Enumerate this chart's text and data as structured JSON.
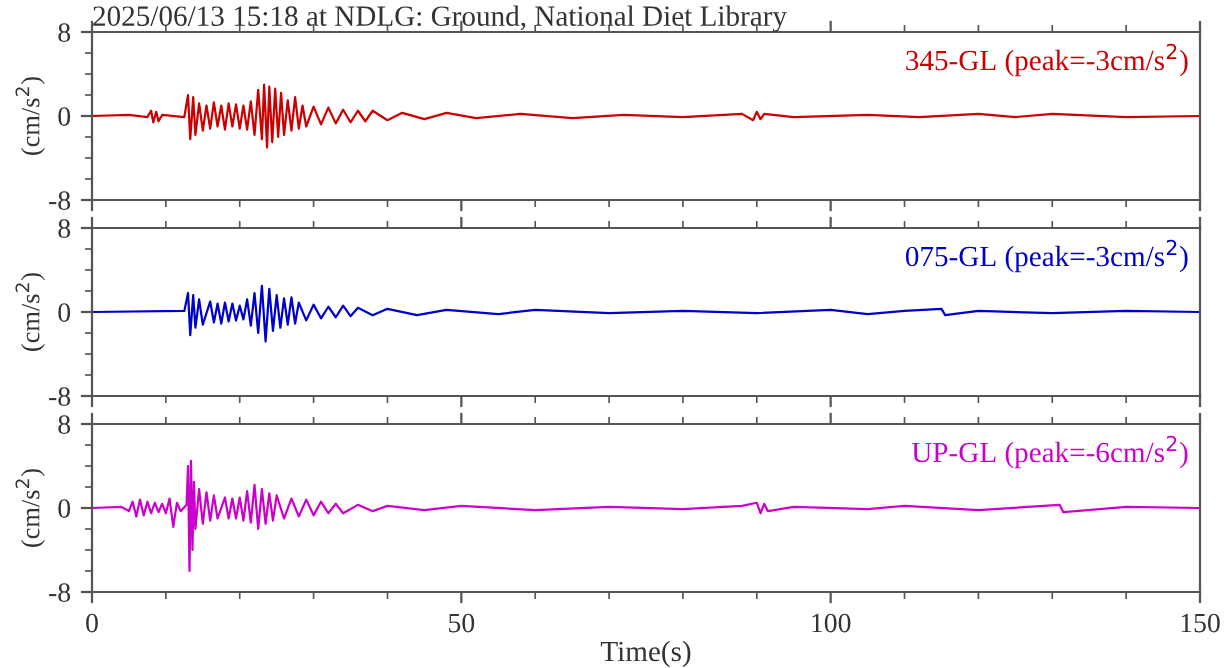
{
  "chart_data": [
    {
      "type": "line",
      "title": "2025/06/13 15:18 at NDLG: Ground, National Diet Library",
      "ylabel": "(cm/s$^{2}$)",
      "xlim": [
        0,
        150
      ],
      "xticks": [
        0,
        50,
        100,
        150
      ],
      "ylim": [
        -8,
        8
      ],
      "yticks": [
        -8,
        0,
        8
      ],
      "tick_labels": "y",
      "series": [
        {
          "name": "345-GL (peak=-3cm/s$^{2}$)",
          "color": "#cc0000",
          "x": [
            0,
            5,
            7.5,
            8,
            8.3,
            8.7,
            9,
            9.5,
            12.5,
            13,
            13.3,
            13.7,
            14,
            14.5,
            15,
            15.5,
            16,
            16.5,
            17,
            17.5,
            18,
            18.5,
            19,
            19.5,
            20,
            20.5,
            21,
            21.5,
            22,
            22.5,
            23,
            23.3,
            23.7,
            24,
            24.4,
            24.8,
            25.2,
            25.6,
            26,
            26.5,
            27,
            27.5,
            28,
            28.5,
            29,
            30,
            31,
            32,
            33,
            34,
            35,
            36,
            37,
            38,
            40,
            42,
            45,
            48,
            52,
            58,
            65,
            72,
            80,
            88,
            89.5,
            90,
            90.5,
            91,
            95,
            105,
            112,
            120,
            125,
            130,
            140,
            150
          ],
          "values": [
            0,
            0.1,
            -0.1,
            0.5,
            -0.6,
            0.4,
            -0.5,
            0.1,
            -0.1,
            2.0,
            -2.2,
            1.8,
            -1.8,
            1.2,
            -1.4,
            1.0,
            -1.2,
            1.3,
            -1.0,
            1.0,
            -1.3,
            1.2,
            -1.0,
            1.1,
            -1.2,
            1.0,
            -1.3,
            1.4,
            -1.8,
            2.5,
            -2.2,
            3.0,
            -3.0,
            2.8,
            -2.5,
            2.6,
            -2.0,
            2.2,
            -1.8,
            1.5,
            -1.4,
            1.8,
            -1.2,
            1.0,
            -1.0,
            0.9,
            -0.8,
            0.8,
            -0.7,
            0.6,
            -0.6,
            0.5,
            -0.5,
            0.5,
            -0.4,
            0.3,
            -0.3,
            0.3,
            -0.2,
            0.2,
            -0.2,
            0.1,
            -0.1,
            0.2,
            -0.4,
            0.4,
            -0.3,
            0.2,
            -0.1,
            0.1,
            -0.1,
            0.2,
            -0.1,
            0.2,
            -0.1,
            0
          ]
        }
      ]
    },
    {
      "type": "line",
      "ylabel": "(cm/s$^{2}$)",
      "xlim": [
        0,
        150
      ],
      "xticks": [
        0,
        50,
        100,
        150
      ],
      "ylim": [
        -8,
        8
      ],
      "yticks": [
        -8,
        0,
        8
      ],
      "tick_labels": "y",
      "series": [
        {
          "name": "075-GL (peak=-3cm/s$^{2}$)",
          "color": "#0000cc",
          "x": [
            0,
            12.5,
            13,
            13.3,
            13.7,
            14,
            14.5,
            15,
            16,
            16.5,
            17,
            17.5,
            18,
            18.5,
            19,
            19.5,
            20,
            20.5,
            21,
            21.5,
            22,
            22.5,
            23,
            23.5,
            24,
            24.5,
            25,
            25.5,
            26,
            26.5,
            27,
            27.5,
            28,
            29,
            30,
            31,
            32,
            33,
            34,
            35,
            36,
            38,
            40,
            44,
            48,
            55,
            60,
            70,
            80,
            90,
            100,
            105,
            110,
            115,
            115.5,
            120,
            130,
            140,
            150
          ],
          "values": [
            0,
            0.1,
            1.8,
            -2.2,
            1.6,
            -1.5,
            1.2,
            -1.2,
            1.0,
            -1.0,
            0.8,
            -1.1,
            0.9,
            -0.9,
            0.8,
            -0.8,
            0.6,
            -0.7,
            1.2,
            -1.3,
            1.8,
            -2.0,
            2.5,
            -2.8,
            2.2,
            -1.8,
            1.6,
            -1.5,
            1.3,
            -1.2,
            1.4,
            -1.1,
            0.9,
            -0.8,
            0.7,
            -0.6,
            0.5,
            -0.5,
            0.6,
            -0.4,
            0.4,
            -0.3,
            0.3,
            -0.3,
            0.2,
            -0.2,
            0.2,
            -0.1,
            0.1,
            -0.1,
            0.2,
            -0.2,
            0.1,
            0.3,
            -0.3,
            0.1,
            -0.1,
            0.1,
            0
          ]
        }
      ]
    },
    {
      "type": "line",
      "ylabel": "(cm/s$^{2}$)",
      "xlabel": "Time(s)",
      "xlim": [
        0,
        150
      ],
      "xticks": [
        0,
        50,
        100,
        150
      ],
      "ylim": [
        -8,
        8
      ],
      "yticks": [
        -8,
        0,
        8
      ],
      "series": [
        {
          "name": "UP-GL (peak=-6cm/s$^{2}$)",
          "color": "#cc00cc",
          "x": [
            0,
            4,
            5,
            5.5,
            6,
            6.5,
            7,
            7.5,
            8,
            8.5,
            9,
            9.5,
            10,
            10.5,
            11,
            11.5,
            12,
            12.8,
            13,
            13.2,
            13.4,
            13.6,
            13.8,
            14,
            14.5,
            15,
            15.5,
            16,
            16.5,
            17,
            18,
            18.5,
            19,
            19.5,
            20,
            20.5,
            21,
            21.5,
            22,
            22.5,
            23,
            23.5,
            24,
            24.5,
            25,
            26,
            27,
            28,
            29,
            30,
            31,
            32,
            33,
            34,
            36,
            38,
            40,
            45,
            50,
            60,
            70,
            80,
            88,
            90,
            90.5,
            91,
            91.5,
            95,
            105,
            110,
            120,
            131,
            131.5,
            140,
            150
          ],
          "values": [
            0,
            0.1,
            -0.3,
            0.6,
            -0.8,
            0.8,
            -0.7,
            0.6,
            -0.5,
            0.5,
            -0.4,
            0.4,
            -0.5,
            0.9,
            -1.8,
            0.5,
            -0.3,
            0.3,
            4.0,
            -6.0,
            4.5,
            -4.0,
            2.5,
            -2.0,
            1.8,
            -1.5,
            1.5,
            -1.2,
            1.2,
            -1.0,
            1.0,
            -1.0,
            0.9,
            -1.0,
            1.0,
            -1.2,
            1.6,
            -1.4,
            2.2,
            -2.0,
            1.8,
            -1.5,
            1.4,
            -1.2,
            1.2,
            -1.0,
            0.9,
            -0.8,
            0.8,
            -0.7,
            0.6,
            -0.5,
            0.4,
            -0.5,
            0.3,
            -0.3,
            0.2,
            -0.2,
            0.2,
            -0.2,
            0.1,
            -0.1,
            0.2,
            0.5,
            -0.5,
            0.4,
            -0.3,
            0.1,
            -0.1,
            0.2,
            -0.2,
            0.3,
            -0.4,
            0.1,
            0
          ]
        }
      ]
    }
  ]
}
